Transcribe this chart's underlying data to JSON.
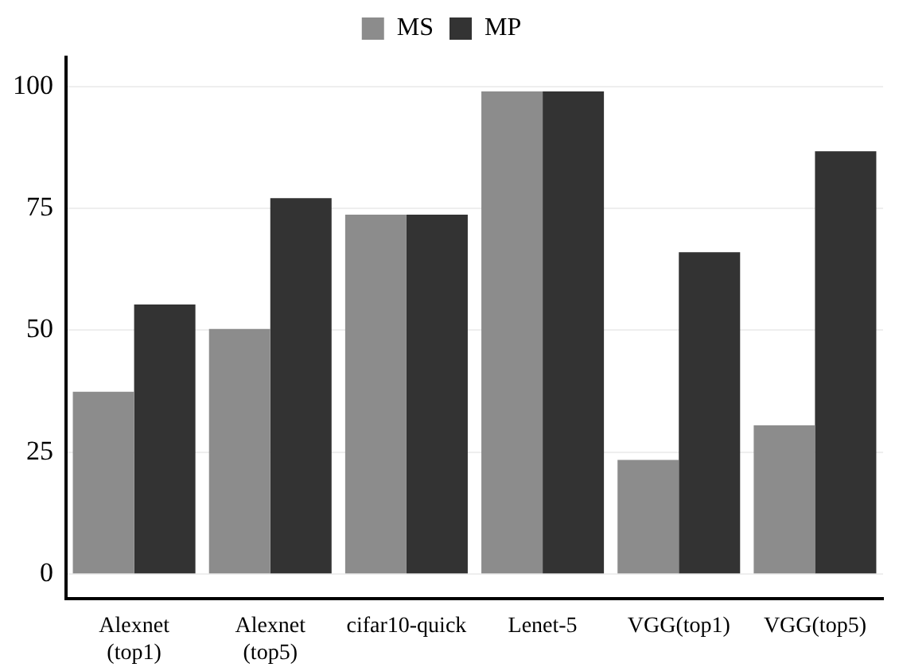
{
  "chart_data": {
    "type": "bar",
    "categories": [
      "Alexnet\n(top1)",
      "Alexnet\n(top5)",
      "cifar10-quick",
      "Lenet-5",
      "VGG(top1)",
      "VGG(top5)"
    ],
    "series": [
      {
        "name": "MS",
        "color": "#8c8c8c",
        "values": [
          37.4,
          50.3,
          73.7,
          99,
          23.4,
          30.5
        ]
      },
      {
        "name": "MP",
        "color": "#333333",
        "values": [
          55.3,
          77.1,
          73.7,
          99,
          66,
          86.7
        ]
      }
    ],
    "ylim": [
      -5,
      106
    ],
    "yticks": [
      0,
      25,
      50,
      75,
      100
    ],
    "grid": "y",
    "legend": "top"
  }
}
